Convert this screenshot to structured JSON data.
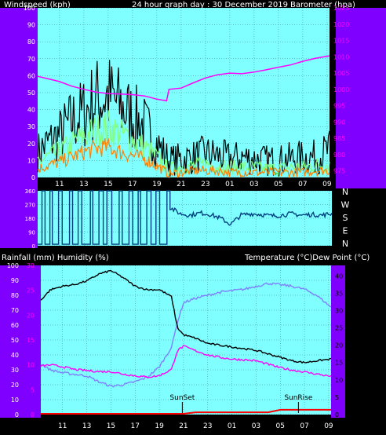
{
  "header": {
    "left_title": "Windspeed (kph)",
    "center_title": "24 hour graph day : 30 December 2019",
    "right_title": "Barometer (hpa)"
  },
  "middle_header": {
    "rain_humidity": "Rainfall (mm)  Humidity (%)",
    "temp_dew": "Temperature (°C)Dew Point (°C)"
  },
  "direction_labels": [
    "N",
    "W",
    "S",
    "E",
    "N"
  ],
  "events": {
    "sunset": "SunSet",
    "sunrise": "SunRise"
  },
  "colors": {
    "panel_bg": "#7fffff",
    "frame": "#8000ff",
    "grid": "#000000",
    "wind_gust": "#000000",
    "wind_avg": "#80ff80",
    "wind_speed": "#ff8000",
    "barometer": "#ff00ff",
    "direction": "#004080",
    "temperature": "#000000",
    "dewpoint": "#ff00ff",
    "humidity": "#8080ff",
    "rain": "#ff0000",
    "pink_axis": "#ff00ff"
  },
  "time_ticks": [
    "11",
    "13",
    "15",
    "17",
    "19",
    "21",
    "23",
    "01",
    "03",
    "05",
    "07",
    "09"
  ],
  "chart_data": [
    {
      "type": "line",
      "id": "wind-barometer",
      "title": "24 hour graph day : 30 December 2019",
      "ylabel": "Windspeed (kph)",
      "y2label": "Barometer (hpa)",
      "ylim": [
        0,
        100
      ],
      "y2lim": [
        973,
        1025
      ],
      "yticks": [
        0,
        10,
        20,
        30,
        40,
        50,
        60,
        70,
        80,
        90,
        100
      ],
      "y2ticks": [
        975,
        980,
        985,
        990,
        995,
        1000,
        1005,
        1010,
        1015,
        1020,
        1025
      ],
      "x_hours": [
        9.2,
        10,
        11,
        12,
        13,
        14,
        15,
        16,
        17,
        18,
        19,
        19.8,
        20,
        21,
        22,
        23,
        24,
        25,
        26,
        27,
        28,
        29,
        30,
        31,
        32,
        33.2
      ],
      "series": [
        {
          "role": "gust",
          "values": [
            15,
            20,
            25,
            33,
            38,
            46,
            48,
            42,
            36,
            30,
            20,
            12,
            10,
            11,
            12,
            14,
            13,
            11,
            12,
            11,
            10,
            10,
            11,
            12,
            12,
            16
          ]
        },
        {
          "role": "average",
          "values": [
            9,
            12,
            15,
            20,
            24,
            28,
            30,
            26,
            22,
            18,
            12,
            6,
            5,
            6,
            7,
            8,
            7,
            6,
            6,
            6,
            5,
            5,
            6,
            6,
            7,
            8
          ]
        },
        {
          "role": "speed",
          "values": [
            5,
            7,
            9,
            12,
            15,
            17,
            18,
            15,
            13,
            11,
            7,
            3,
            2,
            3,
            4,
            4,
            4,
            3,
            3,
            3,
            3,
            3,
            3,
            3,
            4,
            4
          ]
        },
        {
          "role": "barometer",
          "values": [
            1004,
            1003.3,
            1002.4,
            1001,
            1000,
            999.2,
            998.7,
            998.6,
            998.4,
            998,
            997,
            996.5,
            1000,
            1000.4,
            1002,
            1003.5,
            1004.5,
            1005,
            1004.8,
            1005.3,
            1006,
            1006.8,
            1007.5,
            1008.6,
            1009.5,
            1010.3
          ]
        }
      ]
    },
    {
      "type": "line",
      "id": "wind-direction",
      "ylim": [
        0,
        360
      ],
      "yticks": [
        0,
        90,
        180,
        270,
        360
      ],
      "segments": [
        {
          "hours": [
            9.2,
            20
          ],
          "pattern": "switching",
          "levels": [
            10,
            360
          ]
        },
        {
          "hours": [
            20,
            33.2
          ],
          "base": 210,
          "values": [
            250,
            210,
            200,
            215,
            205,
            180,
            140,
            200,
            210,
            205,
            195,
            200,
            210,
            200,
            205,
            200,
            210
          ]
        }
      ]
    },
    {
      "type": "line",
      "id": "temp-humidity",
      "ylabel": "Rainfall (mm)  Humidity (%)",
      "y2label": "Temperature (°C)Dew Point (°C)",
      "ylim": [
        0,
        100
      ],
      "y2lim": [
        0,
        43
      ],
      "yticks": [
        0,
        10,
        20,
        30,
        40,
        50,
        60,
        70,
        80,
        90,
        100
      ],
      "y2ticks": [
        0,
        5,
        10,
        15,
        20,
        25,
        30,
        35,
        40
      ],
      "rain_ticks": [
        0,
        5,
        10,
        15,
        20,
        25,
        30
      ],
      "x_hours": [
        9.2,
        10,
        11,
        12,
        13,
        14,
        15,
        16,
        17,
        18,
        19,
        20,
        20.5,
        21,
        22,
        23,
        24,
        25,
        26,
        27,
        28,
        29,
        30,
        31,
        32,
        33.2
      ],
      "series": [
        {
          "role": "humidity",
          "values": [
            34,
            30,
            28,
            27,
            26,
            22,
            19,
            20,
            22,
            25,
            32,
            45,
            62,
            75,
            78,
            80,
            82,
            83,
            84,
            86,
            88,
            87,
            86,
            84,
            80,
            72
          ]
        },
        {
          "role": "temperature",
          "values": [
            33,
            36,
            37,
            37.5,
            38.5,
            40.5,
            41.5,
            39.5,
            37,
            36,
            36,
            34,
            25,
            23,
            22,
            20.5,
            20,
            19.5,
            19,
            18.5,
            17.5,
            16.5,
            15.5,
            15,
            15.5,
            16
          ]
        },
        {
          "role": "dewpoint",
          "values": [
            14,
            14.3,
            13.8,
            13,
            12.7,
            12.4,
            12.4,
            11.7,
            11.2,
            10.8,
            11.2,
            13,
            18.5,
            19.7,
            18.4,
            17.2,
            16.5,
            16,
            15.8,
            15.5,
            14.5,
            13.5,
            12.8,
            12.3,
            11.7,
            11
          ]
        },
        {
          "role": "rain",
          "values": [
            0,
            0,
            0,
            0,
            0,
            0,
            0,
            0,
            0,
            0,
            0,
            0,
            0,
            0,
            0.3,
            0.3,
            0.3,
            0.3,
            0.3,
            0.3,
            0.3,
            0.8,
            0.8,
            0.8,
            0.8,
            0.8
          ]
        }
      ],
      "sunset_hour": 20.9,
      "sunrise_hour": 30.5
    }
  ]
}
